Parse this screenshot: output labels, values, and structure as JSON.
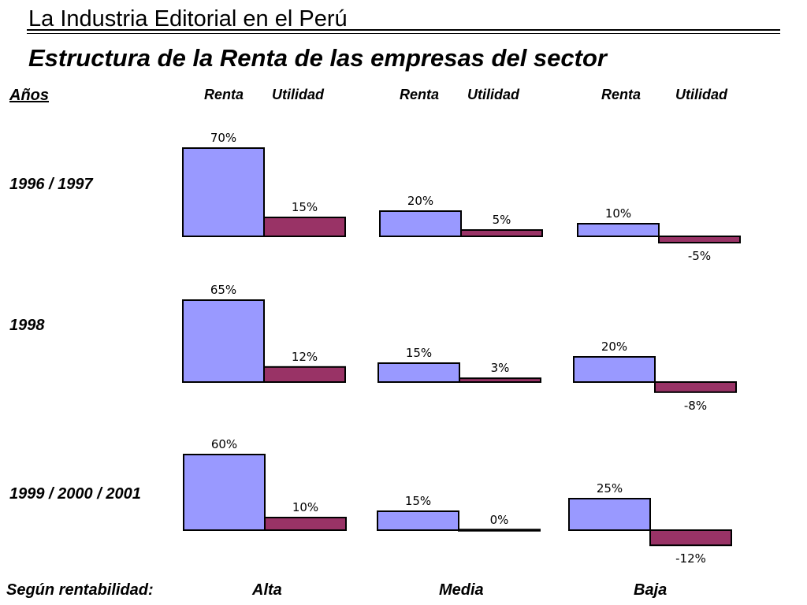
{
  "header": {
    "title": "La Industria Editorial en el Perú",
    "subtitle": "Estructura de la Renta de las empresas del sector"
  },
  "years_label": "Años",
  "column_headers": [
    "Renta",
    "Utilidad",
    "Renta",
    "Utilidad",
    "Renta",
    "Utilidad"
  ],
  "footer": {
    "label": "Según rentabilidad:",
    "groups": [
      "Alta",
      "Media",
      "Baja"
    ]
  },
  "colors": {
    "renta": "#9999ff",
    "utilidad": "#993366",
    "outline": "#000000"
  },
  "chart_data": {
    "type": "bar",
    "rows": [
      "1996 / 1997",
      "1998",
      "1999 / 2000 / 2001"
    ],
    "groups": [
      "Alta",
      "Media",
      "Baja"
    ],
    "series": [
      {
        "name": "Renta",
        "values": [
          [
            70,
            20,
            10
          ],
          [
            65,
            15,
            20
          ],
          [
            60,
            15,
            25
          ]
        ],
        "labels": [
          [
            "70%",
            "20%",
            "10%"
          ],
          [
            "65%",
            "15%",
            "20%"
          ],
          [
            "60%",
            "15%",
            "25%"
          ]
        ]
      },
      {
        "name": "Utilidad",
        "values": [
          [
            15,
            5,
            -5
          ],
          [
            12,
            3,
            -8
          ],
          [
            10,
            0,
            -12
          ]
        ],
        "labels": [
          [
            "15%",
            "5%",
            "-5%"
          ],
          [
            "12%",
            "3%",
            "-8%"
          ],
          [
            "10%",
            "0%",
            "-12%"
          ]
        ]
      }
    ]
  }
}
